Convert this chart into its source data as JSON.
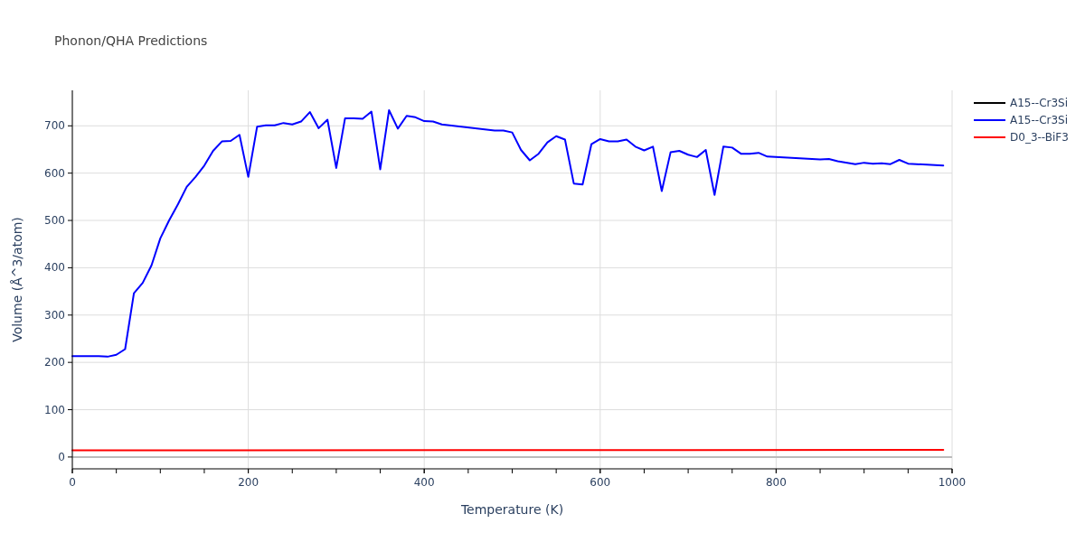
{
  "chart_data": {
    "type": "line",
    "title": "Phonon/QHA Predictions",
    "xlabel": "Temperature (K)",
    "ylabel": "Volume (Å^3/atom)",
    "x": [
      0,
      10,
      20,
      30,
      40,
      50,
      60,
      70,
      80,
      90,
      100,
      110,
      120,
      130,
      140,
      150,
      160,
      170,
      180,
      190,
      200,
      210,
      220,
      230,
      240,
      250,
      260,
      270,
      280,
      290,
      300,
      310,
      320,
      330,
      340,
      350,
      360,
      370,
      380,
      390,
      400,
      410,
      420,
      480,
      490,
      500,
      510,
      520,
      530,
      540,
      550,
      560,
      570,
      580,
      590,
      600,
      610,
      620,
      630,
      640,
      650,
      660,
      670,
      680,
      690,
      700,
      710,
      720,
      730,
      740,
      750,
      760,
      770,
      780,
      790,
      850,
      860,
      870,
      890,
      900,
      910,
      920,
      930,
      940,
      950,
      990
    ],
    "series": [
      {
        "name": "A15--Cr3Si",
        "color": "#000000",
        "values": [
          null,
          null,
          null,
          null,
          null,
          null,
          null,
          null,
          null,
          null,
          null,
          null,
          null,
          null,
          null,
          null,
          null,
          null,
          null,
          null,
          null,
          null,
          null,
          null,
          null,
          null,
          null,
          null,
          null,
          null,
          null,
          null,
          null,
          null,
          null,
          null,
          null,
          null,
          null,
          null,
          null,
          null,
          null,
          null,
          null,
          null,
          null,
          null,
          null,
          null,
          null,
          null,
          null,
          null,
          null,
          null,
          null,
          null,
          null,
          null,
          null,
          null,
          null,
          null,
          null,
          null,
          null,
          null,
          null,
          null,
          null,
          null,
          null,
          null,
          null,
          null,
          null,
          null,
          null,
          null,
          null,
          null,
          null,
          null,
          null,
          null
        ]
      },
      {
        "name": "A15--Cr3Si",
        "color": "#0000ff",
        "values": [
          213,
          213,
          213,
          213,
          212,
          216,
          228,
          346,
          368,
          405,
          462,
          500,
          534,
          571,
          592,
          616,
          647,
          667,
          668,
          681,
          592,
          698,
          701,
          701,
          706,
          703,
          709,
          729,
          695,
          713,
          611,
          716,
          716,
          715,
          730,
          608,
          733,
          694,
          721,
          718,
          710,
          709,
          703,
          690,
          690,
          686,
          649,
          627,
          641,
          665,
          678,
          671,
          578,
          576,
          661,
          672,
          667,
          667,
          671,
          656,
          648,
          656,
          562,
          644,
          647,
          639,
          634,
          649,
          554,
          656,
          654,
          641,
          641,
          643,
          635,
          629,
          630,
          625,
          619,
          622,
          620,
          621,
          619,
          628,
          620,
          616
        ]
      },
      {
        "name": "D0_3--BiF3",
        "color": "#ff0000",
        "x": [
          0,
          990
        ],
        "values": [
          14,
          15
        ]
      }
    ],
    "xlim": [
      0,
      1000
    ],
    "xticks": [
      0,
      {
        "value": 50,
        "label": null
      },
      200,
      400,
      600,
      800,
      1000
    ],
    "ylim": [
      -25,
      775
    ],
    "yticks": [
      0,
      100,
      200,
      300,
      400,
      500,
      600,
      700
    ],
    "grid": true,
    "legend": "top right",
    "marker": "none",
    "line_style": "solid"
  }
}
